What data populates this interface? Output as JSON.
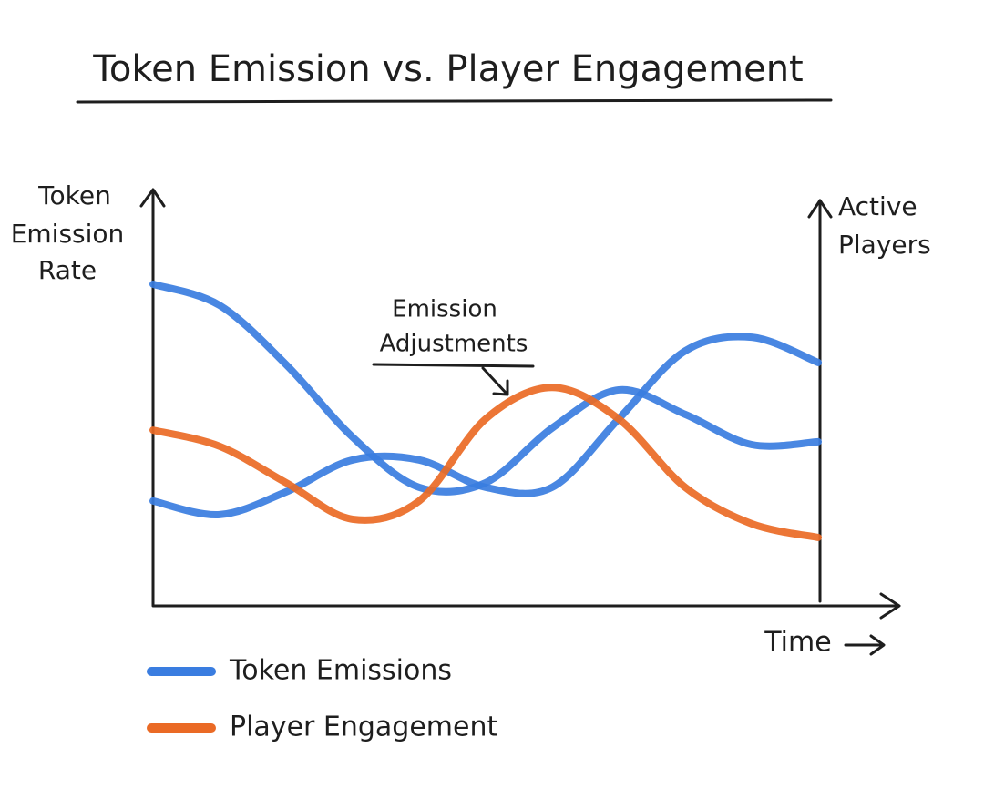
{
  "chart_data": {
    "type": "line",
    "title": "Token Emission vs. Player Engagement",
    "y_label": [
      "Token",
      "Emission",
      "Rate"
    ],
    "y2_label": [
      "Active",
      "Players"
    ],
    "x_label": "Time",
    "annotation": [
      "Emission",
      "Adjustments"
    ],
    "x": [
      0,
      1,
      2,
      3,
      4,
      5,
      6,
      7,
      8,
      9,
      10
    ],
    "xlim": [
      0,
      10
    ],
    "ylim": [
      0,
      100
    ],
    "series": [
      {
        "name": "Token Emissions",
        "color": "#3a7de0",
        "values": [
          77.6,
          72.5,
          58.2,
          40.7,
          28.6,
          29.7,
          42.9,
          52.1,
          46.2,
          38.9,
          39.6
        ]
      },
      {
        "color": "#3a7de0",
        "values": [
          25.3,
          22.0,
          27.5,
          35.2,
          35.2,
          28.6,
          28.6,
          45.1,
          61.5,
          64.8,
          58.7
        ]
      },
      {
        "name": "Player Engagement",
        "color": "#ea6a25",
        "values": [
          42.4,
          38.5,
          29.7,
          20.9,
          25.3,
          45.1,
          52.7,
          45.1,
          28.6,
          19.8,
          16.5
        ]
      }
    ]
  }
}
